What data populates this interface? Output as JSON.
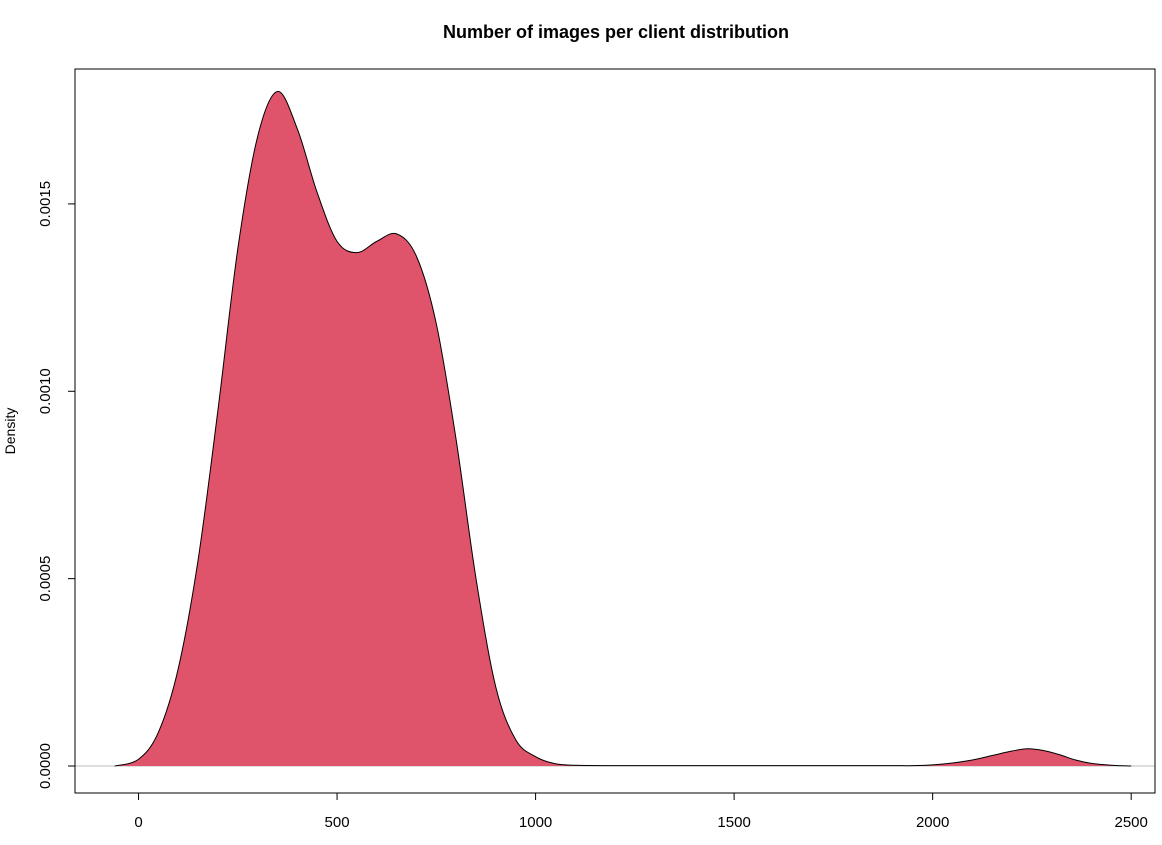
{
  "chart_data": {
    "type": "area",
    "title": "Number of images per client distribution",
    "xlabel": "",
    "ylabel": "Density",
    "xlim": [
      -160,
      2560
    ],
    "ylim": [
      -7.2e-05,
      0.00186
    ],
    "x_ticks": [
      0,
      500,
      1000,
      1500,
      2000,
      2500
    ],
    "y_ticks": [
      0.0,
      0.0005,
      0.001,
      0.0015
    ],
    "y_tick_labels": [
      "0.0000",
      "0.0005",
      "0.0010",
      "0.0015"
    ],
    "fill_color": "#DF536B",
    "line_color": "#000000",
    "baseline_color": "#BEBEBE",
    "series": [
      {
        "x": [
          -60,
          0,
          50,
          100,
          150,
          200,
          250,
          300,
          350,
          400,
          450,
          500,
          550,
          600,
          650,
          700,
          750,
          800,
          850,
          900,
          950,
          1000,
          1050,
          1100,
          1200,
          1300,
          1400,
          1500,
          1600,
          1700,
          1800,
          1900,
          1950,
          2000,
          2050,
          2100,
          2150,
          2200,
          2240,
          2280,
          2320,
          2360,
          2400,
          2450,
          2500
        ],
        "y": [
          0.0,
          1.8e-05,
          9e-05,
          0.00026,
          0.00055,
          0.00095,
          0.00138,
          0.00168,
          0.0018,
          0.0017,
          0.00153,
          0.0014,
          0.00137,
          0.0014,
          0.00142,
          0.00136,
          0.00118,
          0.00087,
          0.0005,
          0.00021,
          7e-05,
          2.5e-05,
          6e-06,
          2e-06,
          1e-06,
          1e-06,
          1e-06,
          1e-06,
          1e-06,
          1e-06,
          1e-06,
          1e-06,
          1e-06,
          3e-06,
          8e-06,
          1.6e-05,
          2.8e-05,
          4e-05,
          4.6e-05,
          4.1e-05,
          3e-05,
          1.6e-05,
          7e-06,
          2e-06,
          0.0
        ]
      }
    ]
  }
}
